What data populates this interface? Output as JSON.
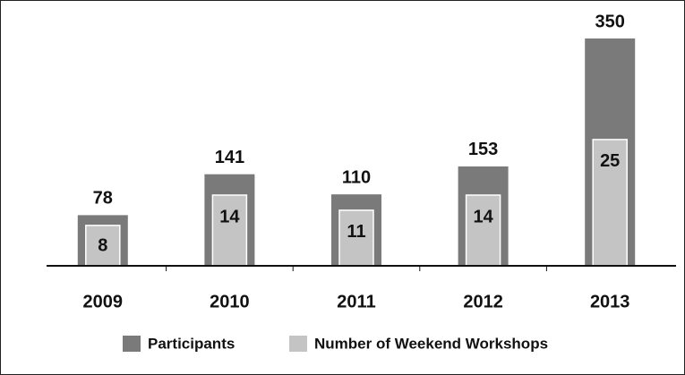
{
  "chart_data": {
    "type": "bar",
    "categories": [
      "2009",
      "2010",
      "2011",
      "2012",
      "2013"
    ],
    "series": [
      {
        "name": "Participants",
        "color": "#7a7a7a",
        "values": [
          78,
          141,
          110,
          153,
          350
        ]
      },
      {
        "name": "Number of Weekend Workshops",
        "color": "#c4c4c4",
        "values": [
          8,
          14,
          11,
          14,
          25
        ],
        "axis": "y2"
      }
    ],
    "ylim": [
      0,
      350
    ],
    "y2lim": [
      0,
      45
    ],
    "legend": "bottom"
  }
}
